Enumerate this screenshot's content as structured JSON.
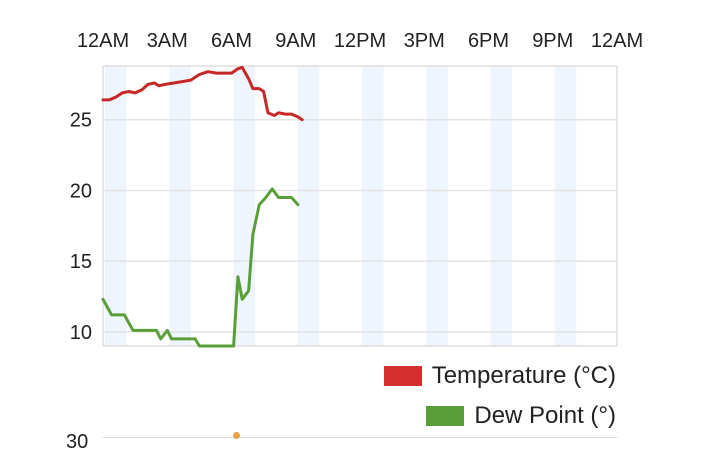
{
  "chart_data": {
    "type": "line",
    "x_tick_labels": [
      "12AM",
      "3AM",
      "6AM",
      "9AM",
      "12PM",
      "3PM",
      "6PM",
      "9PM",
      "12AM"
    ],
    "y_ticks": [
      10,
      15,
      20,
      25
    ],
    "ylim": [
      9,
      28.8
    ],
    "xlim_hours": [
      0,
      24
    ],
    "grid": true,
    "legend_position": "bottom-right",
    "series": [
      {
        "name": "Temperature (°C)",
        "color": "#c62828",
        "points": [
          [
            0,
            26.4
          ],
          [
            0.3,
            26.4
          ],
          [
            0.6,
            26.6
          ],
          [
            0.9,
            26.9
          ],
          [
            1.2,
            27.0
          ],
          [
            1.5,
            26.9
          ],
          [
            1.8,
            27.1
          ],
          [
            2.1,
            27.5
          ],
          [
            2.4,
            27.6
          ],
          [
            2.6,
            27.4
          ],
          [
            2.9,
            27.5
          ],
          [
            3.3,
            27.6
          ],
          [
            3.7,
            27.7
          ],
          [
            4.1,
            27.8
          ],
          [
            4.5,
            28.2
          ],
          [
            4.9,
            28.4
          ],
          [
            5.3,
            28.3
          ],
          [
            5.7,
            28.3
          ],
          [
            6.0,
            28.3
          ],
          [
            6.3,
            28.6
          ],
          [
            6.5,
            28.7
          ],
          [
            6.8,
            27.9
          ],
          [
            7.0,
            27.2
          ],
          [
            7.3,
            27.2
          ],
          [
            7.5,
            27.0
          ],
          [
            7.7,
            25.5
          ],
          [
            8.0,
            25.3
          ],
          [
            8.2,
            25.5
          ],
          [
            8.5,
            25.4
          ],
          [
            8.8,
            25.4
          ],
          [
            9.1,
            25.2
          ],
          [
            9.3,
            25.0
          ]
        ]
      },
      {
        "name": "Dew Point (°)",
        "color": "#5a9e3a",
        "points": [
          [
            0,
            12.3
          ],
          [
            0.4,
            11.2
          ],
          [
            1.0,
            11.2
          ],
          [
            1.4,
            10.1
          ],
          [
            2.0,
            10.1
          ],
          [
            2.5,
            10.1
          ],
          [
            2.7,
            9.5
          ],
          [
            3.0,
            10.1
          ],
          [
            3.2,
            9.5
          ],
          [
            4.0,
            9.5
          ],
          [
            4.3,
            9.5
          ],
          [
            4.5,
            9.0
          ],
          [
            5.3,
            9.0
          ],
          [
            5.9,
            9.0
          ],
          [
            6.1,
            9.0
          ],
          [
            6.3,
            13.9
          ],
          [
            6.5,
            12.3
          ],
          [
            6.8,
            12.9
          ],
          [
            7.0,
            16.9
          ],
          [
            7.3,
            19.0
          ],
          [
            7.6,
            19.5
          ],
          [
            7.9,
            20.1
          ],
          [
            8.2,
            19.5
          ],
          [
            8.6,
            19.5
          ],
          [
            8.8,
            19.5
          ],
          [
            9.1,
            19.0
          ]
        ]
      }
    ]
  }
}
